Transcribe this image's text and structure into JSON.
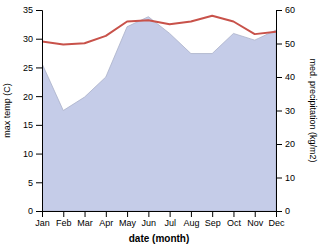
{
  "chart_data": {
    "type": "line",
    "xlabel": "date (month)",
    "ylabel": "max temp (C)",
    "y2label": "med. precipitation (kg/m2)",
    "categories": [
      "Jan",
      "Feb",
      "Mar",
      "Apr",
      "May",
      "Jun",
      "Jul",
      "Aug",
      "Sep",
      "Oct",
      "Nov",
      "Dec"
    ],
    "series": [
      {
        "type": "area",
        "axis": "y2",
        "color": "#c5cce8",
        "values": [
          44,
          30,
          34,
          40,
          55,
          58,
          53,
          47,
          47,
          53,
          51,
          54
        ]
      },
      {
        "type": "line",
        "color": "#c8524a",
        "values": [
          29.5,
          29.0,
          29.2,
          30.5,
          33.0,
          33.2,
          32.5,
          33.0,
          34.0,
          33.0,
          30.8,
          31.2
        ]
      }
    ],
    "ylim": [
      0,
      35
    ],
    "yticks": [
      0,
      5,
      10,
      15,
      20,
      25,
      30,
      35
    ],
    "y2lim": [
      0,
      60
    ],
    "y2ticks": [
      0,
      10,
      20,
      30,
      40,
      50,
      60
    ],
    "grid": false
  }
}
